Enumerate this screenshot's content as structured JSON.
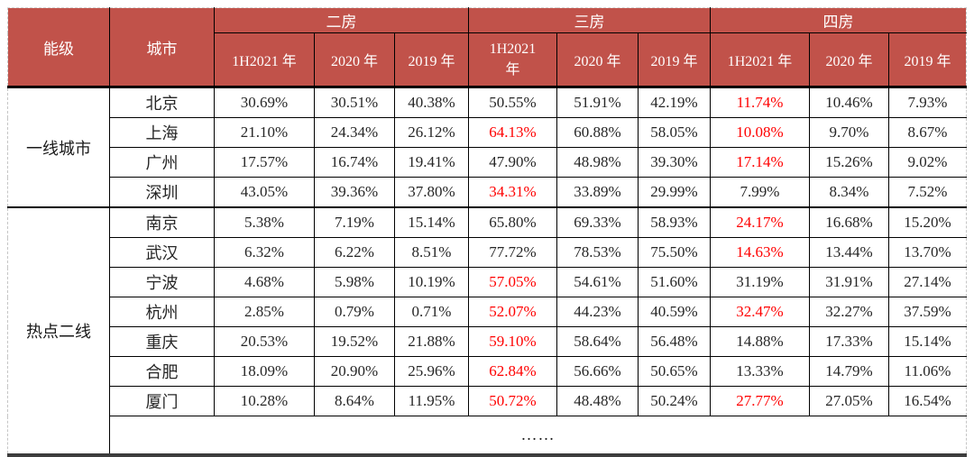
{
  "colors": {
    "header_bg": "#c1524a",
    "header_text": "#ffffff",
    "highlight_text": "#ff0000",
    "body_text": "#262626",
    "grid": "#000000"
  },
  "chart_data": {
    "type": "table",
    "header": {
      "level_label": "能级",
      "city_label": "城市",
      "groups": [
        {
          "label": "二房",
          "cols": [
            "1H2021 年",
            "2020 年",
            "2019 年"
          ]
        },
        {
          "label": "三房",
          "cols": [
            "1H2021 年",
            "2020 年",
            "2019 年"
          ]
        },
        {
          "label": "四房",
          "cols": [
            "1H2021 年",
            "2020 年",
            "2019 年"
          ]
        }
      ]
    },
    "tiers": [
      {
        "label": "一线城市",
        "rows": [
          {
            "city": "北京",
            "values": [
              "30.69%",
              "30.51%",
              "40.38%",
              "50.55%",
              "51.91%",
              "42.19%",
              "11.74%",
              "10.46%",
              "7.93%"
            ],
            "red": [
              6
            ]
          },
          {
            "city": "上海",
            "values": [
              "21.10%",
              "24.34%",
              "26.12%",
              "64.13%",
              "60.88%",
              "58.05%",
              "10.08%",
              "9.70%",
              "8.67%"
            ],
            "red": [
              3,
              6
            ]
          },
          {
            "city": "广州",
            "values": [
              "17.57%",
              "16.74%",
              "19.41%",
              "47.90%",
              "48.98%",
              "39.30%",
              "17.14%",
              "15.26%",
              "9.02%"
            ],
            "red": [
              6
            ]
          },
          {
            "city": "深圳",
            "values": [
              "43.05%",
              "39.36%",
              "37.80%",
              "34.31%",
              "33.89%",
              "29.99%",
              "7.99%",
              "8.34%",
              "7.52%"
            ],
            "red": [
              3
            ]
          }
        ]
      },
      {
        "label": "热点二线",
        "rows": [
          {
            "city": "南京",
            "values": [
              "5.38%",
              "7.19%",
              "15.14%",
              "65.80%",
              "69.33%",
              "58.93%",
              "24.17%",
              "16.68%",
              "15.20%"
            ],
            "red": [
              6
            ]
          },
          {
            "city": "武汉",
            "values": [
              "6.32%",
              "6.22%",
              "8.51%",
              "77.72%",
              "78.53%",
              "75.50%",
              "14.63%",
              "13.44%",
              "13.70%"
            ],
            "red": [
              6
            ]
          },
          {
            "city": "宁波",
            "values": [
              "4.68%",
              "5.98%",
              "10.19%",
              "57.05%",
              "54.61%",
              "51.60%",
              "31.19%",
              "31.91%",
              "27.14%"
            ],
            "red": [
              3
            ]
          },
          {
            "city": "杭州",
            "values": [
              "2.85%",
              "0.79%",
              "0.71%",
              "52.07%",
              "44.23%",
              "40.59%",
              "32.47%",
              "32.27%",
              "37.59%"
            ],
            "red": [
              3,
              6
            ]
          },
          {
            "city": "重庆",
            "values": [
              "20.53%",
              "19.52%",
              "21.88%",
              "59.10%",
              "58.64%",
              "56.48%",
              "14.88%",
              "17.33%",
              "15.14%"
            ],
            "red": [
              3
            ]
          },
          {
            "city": "合肥",
            "values": [
              "18.09%",
              "20.90%",
              "25.96%",
              "62.84%",
              "56.66%",
              "50.65%",
              "13.33%",
              "14.79%",
              "11.06%"
            ],
            "red": [
              3
            ]
          },
          {
            "city": "厦门",
            "values": [
              "10.28%",
              "8.64%",
              "11.95%",
              "50.72%",
              "48.48%",
              "50.24%",
              "27.77%",
              "27.05%",
              "16.54%"
            ],
            "red": [
              3,
              6
            ]
          }
        ]
      }
    ],
    "ellipsis_row": "……"
  }
}
